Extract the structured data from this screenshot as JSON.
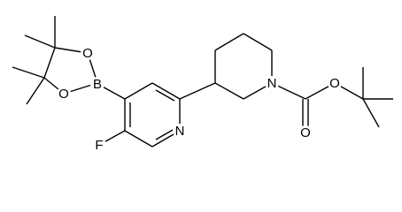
{
  "atoms": {
    "f": "F",
    "n_pyridine": "N",
    "b": "B",
    "o_boronate_top": "O",
    "o_boronate_bottom": "O",
    "n_piperidine": "N",
    "o_carbonyl": "O",
    "o_ester": "O"
  }
}
